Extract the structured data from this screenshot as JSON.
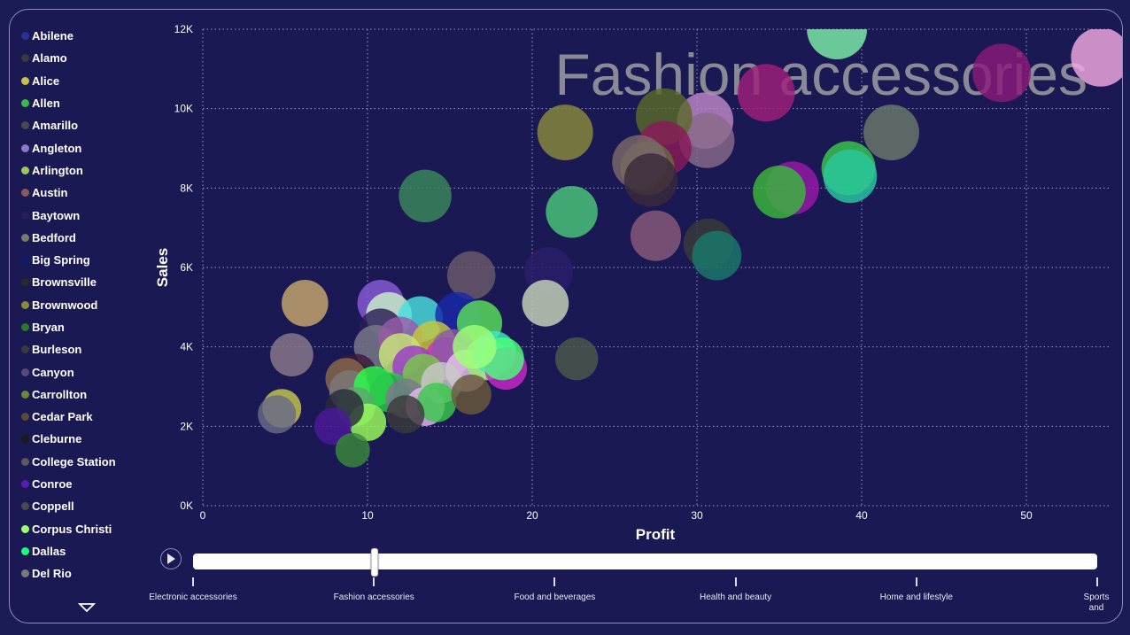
{
  "legend": {
    "items": [
      {
        "label": "Abilene",
        "color": "#2b2f9a"
      },
      {
        "label": "Alamo",
        "color": "#3a3a3a"
      },
      {
        "label": "Alice",
        "color": "#c8c24a"
      },
      {
        "label": "Allen",
        "color": "#3cb84a"
      },
      {
        "label": "Amarillo",
        "color": "#4a4a4a"
      },
      {
        "label": "Angleton",
        "color": "#8a78c8"
      },
      {
        "label": "Arlington",
        "color": "#9ac85a"
      },
      {
        "label": "Austin",
        "color": "#8a5a5a"
      },
      {
        "label": "Baytown",
        "color": "#2a1f55"
      },
      {
        "label": "Bedford",
        "color": "#7a7a6a"
      },
      {
        "label": "Big Spring",
        "color": "#0f1a6a"
      },
      {
        "label": "Brownsville",
        "color": "#2a2a2a"
      },
      {
        "label": "Brownwood",
        "color": "#8a8a3a"
      },
      {
        "label": "Bryan",
        "color": "#2a7a2a"
      },
      {
        "label": "Burleson",
        "color": "#3a3a3a"
      },
      {
        "label": "Canyon",
        "color": "#5a4a7a"
      },
      {
        "label": "Carrollton",
        "color": "#6a8a3a"
      },
      {
        "label": "Cedar Park",
        "color": "#5a4a3a"
      },
      {
        "label": "Cleburne",
        "color": "#1a1a1a"
      },
      {
        "label": "College Station",
        "color": "#5a5a5a"
      },
      {
        "label": "Conroe",
        "color": "#5a1ab8"
      },
      {
        "label": "Coppell",
        "color": "#4a4a4a"
      },
      {
        "label": "Corpus Christi",
        "color": "#9aff6a"
      },
      {
        "label": "Dallas",
        "color": "#1aff7a"
      },
      {
        "label": "Del Rio",
        "color": "#7a7a7a"
      }
    ],
    "more_icon": "chevron-down-icon"
  },
  "chart_data": {
    "type": "scatter",
    "title": "Fashion accessories",
    "xlabel": "Profit",
    "ylabel": "Sales",
    "xlim": [
      0,
      55
    ],
    "ylim": [
      0,
      12000
    ],
    "xticks": [
      "0",
      "10",
      "20",
      "30",
      "40",
      "50"
    ],
    "yticks": [
      "0K",
      "2K",
      "4K",
      "6K",
      "8K",
      "10K",
      "12K"
    ],
    "grid": true,
    "points": [
      {
        "x": 54.5,
        "y": 11300,
        "color": "#f4a8e0"
      },
      {
        "x": 48.5,
        "y": 10900,
        "color": "#8a1a7a"
      },
      {
        "x": 38.5,
        "y": 12000,
        "color": "#7ef0a8"
      },
      {
        "x": 34.2,
        "y": 10400,
        "color": "#a0207a"
      },
      {
        "x": 41.8,
        "y": 9400,
        "color": "#6a7a6a"
      },
      {
        "x": 30.5,
        "y": 9700,
        "color": "#c088c8"
      },
      {
        "x": 30.6,
        "y": 9200,
        "color": "#8a6a8a"
      },
      {
        "x": 28.0,
        "y": 9800,
        "color": "#5a6a2a"
      },
      {
        "x": 28.0,
        "y": 9000,
        "color": "#8a1a5a"
      },
      {
        "x": 27.0,
        "y": 8500,
        "color": "#6a6a3a"
      },
      {
        "x": 26.5,
        "y": 8650,
        "color": "#7a6a6a"
      },
      {
        "x": 27.2,
        "y": 8200,
        "color": "#3a2a3a"
      },
      {
        "x": 22.0,
        "y": 9400,
        "color": "#8a8a3a"
      },
      {
        "x": 22.4,
        "y": 7400,
        "color": "#4ac87a"
      },
      {
        "x": 35.8,
        "y": 8000,
        "color": "#9a1aa8"
      },
      {
        "x": 35.0,
        "y": 7900,
        "color": "#3ab83a"
      },
      {
        "x": 39.2,
        "y": 8500,
        "color": "#3ac84a"
      },
      {
        "x": 39.3,
        "y": 8300,
        "color": "#2ac8a0"
      },
      {
        "x": 13.5,
        "y": 7800,
        "color": "#3a8a5a"
      },
      {
        "x": 27.5,
        "y": 6800,
        "color": "#8a5a7a"
      },
      {
        "x": 30.7,
        "y": 6600,
        "color": "#3a3a3a"
      },
      {
        "x": 31.2,
        "y": 6300,
        "color": "#1a7a6a"
      },
      {
        "x": 21.0,
        "y": 5900,
        "color": "#2a1f6a"
      },
      {
        "x": 16.3,
        "y": 5800,
        "color": "#6a5a6a"
      },
      {
        "x": 20.8,
        "y": 5100,
        "color": "#c8d4b8"
      },
      {
        "x": 22.7,
        "y": 3700,
        "color": "#4a5a4a"
      },
      {
        "x": 6.2,
        "y": 5100,
        "color": "#c8a86a"
      },
      {
        "x": 5.4,
        "y": 3800,
        "color": "#8a7a8a"
      },
      {
        "x": 10.8,
        "y": 5100,
        "color": "#8a5ad8"
      },
      {
        "x": 11.3,
        "y": 4800,
        "color": "#c8f0c8"
      },
      {
        "x": 13.2,
        "y": 4700,
        "color": "#4ae0e0"
      },
      {
        "x": 15.5,
        "y": 4800,
        "color": "#1a2aa8"
      },
      {
        "x": 16.8,
        "y": 4600,
        "color": "#5ae05a"
      },
      {
        "x": 10.8,
        "y": 4400,
        "color": "#2a1f55"
      },
      {
        "x": 10.5,
        "y": 4000,
        "color": "#7a7a8a"
      },
      {
        "x": 12.0,
        "y": 4200,
        "color": "#9a5aa8"
      },
      {
        "x": 14.0,
        "y": 4100,
        "color": "#c8c83a"
      },
      {
        "x": 14.8,
        "y": 3700,
        "color": "#d82ac8"
      },
      {
        "x": 15.2,
        "y": 3900,
        "color": "#8a5aa8"
      },
      {
        "x": 16.0,
        "y": 3400,
        "color": "#e8c8e8"
      },
      {
        "x": 17.2,
        "y": 3700,
        "color": "#9ae87a"
      },
      {
        "x": 17.7,
        "y": 3850,
        "color": "#3ae8c8"
      },
      {
        "x": 18.4,
        "y": 3450,
        "color": "#c82ac8"
      },
      {
        "x": 18.2,
        "y": 3700,
        "color": "#4aff7a"
      },
      {
        "x": 16.5,
        "y": 4000,
        "color": "#a0ff7a"
      },
      {
        "x": 12.0,
        "y": 3800,
        "color": "#c8e87a"
      },
      {
        "x": 12.8,
        "y": 3500,
        "color": "#9a3ac8"
      },
      {
        "x": 13.4,
        "y": 3300,
        "color": "#7ac84a"
      },
      {
        "x": 14.5,
        "y": 3100,
        "color": "#c8c8c8"
      },
      {
        "x": 9.3,
        "y": 3300,
        "color": "#3a1a3a"
      },
      {
        "x": 8.7,
        "y": 3200,
        "color": "#8a6a4a"
      },
      {
        "x": 8.9,
        "y": 2900,
        "color": "#7a7a7a"
      },
      {
        "x": 10.4,
        "y": 3000,
        "color": "#2aff4a"
      },
      {
        "x": 11.4,
        "y": 2850,
        "color": "#2ac84a"
      },
      {
        "x": 12.3,
        "y": 2700,
        "color": "#7a7a8a"
      },
      {
        "x": 13.5,
        "y": 2500,
        "color": "#e8b8f0"
      },
      {
        "x": 14.2,
        "y": 2600,
        "color": "#3ac84a"
      },
      {
        "x": 16.3,
        "y": 2800,
        "color": "#6a5a3a"
      },
      {
        "x": 12.3,
        "y": 2300,
        "color": "#3a3a3a"
      },
      {
        "x": 9.3,
        "y": 2500,
        "color": "#5aa86a"
      },
      {
        "x": 10.0,
        "y": 2100,
        "color": "#9aff5a"
      },
      {
        "x": 8.6,
        "y": 2450,
        "color": "#2a2a3a"
      },
      {
        "x": 7.9,
        "y": 2000,
        "color": "#4a1a9a"
      },
      {
        "x": 4.8,
        "y": 2450,
        "color": "#c8c84a"
      },
      {
        "x": 4.5,
        "y": 2300,
        "color": "#6a6a8a"
      },
      {
        "x": 9.1,
        "y": 1400,
        "color": "#3a8a3a"
      }
    ]
  },
  "slider": {
    "play_icon": "play-icon",
    "current_value": "Fashion accessories",
    "current_index": 1,
    "labels": [
      "Electronic accessories",
      "Fashion accessories",
      "Food and beverages",
      "Health and beauty",
      "Home and lifestyle",
      "Sports and"
    ]
  }
}
